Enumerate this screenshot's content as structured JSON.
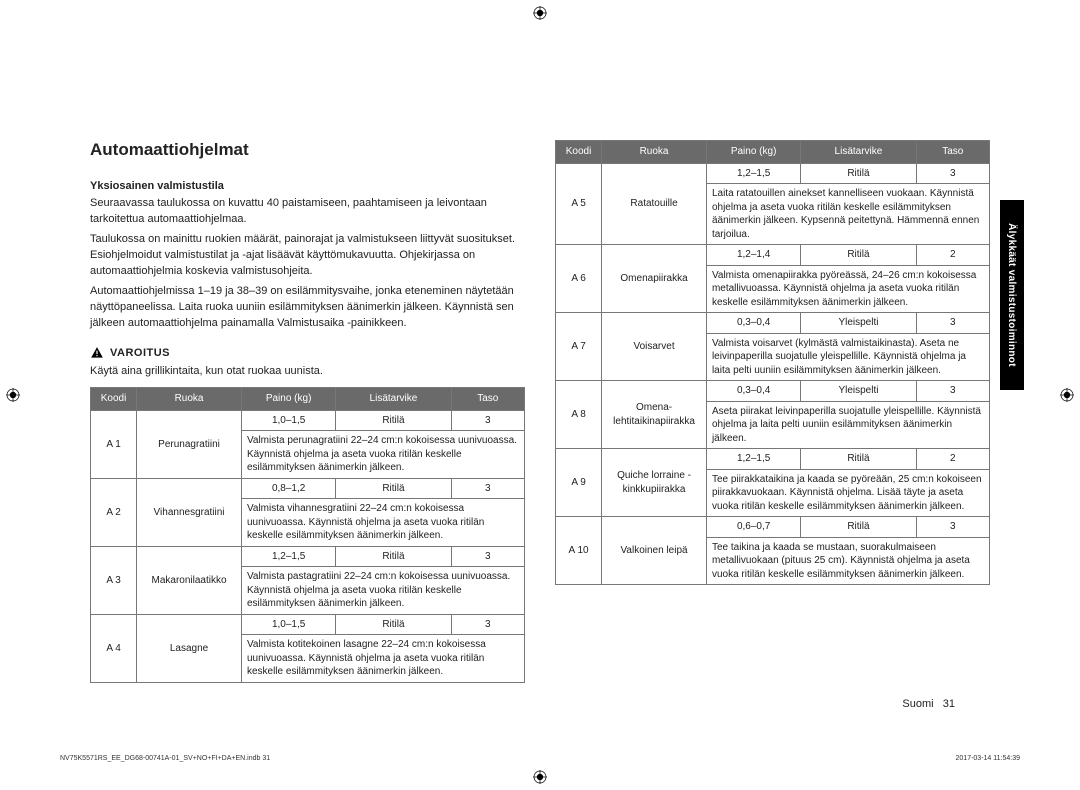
{
  "heading": "Automaattiohjelmat",
  "section_title": "Yksiosainen valmistustila",
  "intro_paragraphs": [
    "Seuraavassa taulukossa on kuvattu 40 paistamiseen, paahtamiseen ja leivontaan tarkoitettua automaattiohjelmaa.",
    "Taulukossa on mainittu ruokien määrät, painorajat ja valmistukseen liittyvät suositukset. Esiohjelmoidut valmistustilat ja -ajat lisäävät käyttömukavuutta. Ohjekirjassa on automaattiohjelmia koskevia valmistusohjeita.",
    "Automaattiohjelmissa 1–19 ja 38–39 on esilämmitysvaihe, jonka eteneminen näytetään näyttöpaneelissa. Laita ruoka uuniin esilämmityksen äänimerkin jälkeen. Käynnistä sen jälkeen automaattiohjelma painamalla Valmistusaika -painikkeen."
  ],
  "warning_label": "VAROITUS",
  "warning_text": "Käytä aina grillikintaita, kun otat ruokaa uunista.",
  "headers": {
    "code": "Koodi",
    "food": "Ruoka",
    "weight": "Paino (kg)",
    "accessory": "Lisätarvike",
    "level": "Taso"
  },
  "left_rows": [
    {
      "code": "A 1",
      "food": "Perunagratiini",
      "weight": "1,0–1,5",
      "acc": "Ritilä",
      "lvl": "3",
      "instr": "Valmista perunagratiini 22–24 cm:n kokoisessa uunivuoassa. Käynnistä ohjelma ja aseta vuoka ritilän keskelle esilämmityksen äänimerkin jälkeen."
    },
    {
      "code": "A 2",
      "food": "Vihannesgratiini",
      "weight": "0,8–1,2",
      "acc": "Ritilä",
      "lvl": "3",
      "instr": "Valmista vihannesgratiini 22–24 cm:n kokoisessa uunivuoassa. Käynnistä ohjelma ja aseta vuoka ritilän keskelle esilämmityksen äänimerkin jälkeen."
    },
    {
      "code": "A 3",
      "food": "Makaronilaatikko",
      "weight": "1,2–1,5",
      "acc": "Ritilä",
      "lvl": "3",
      "instr": "Valmista pastagratiini 22–24 cm:n kokoisessa uunivuoassa. Käynnistä ohjelma ja aseta vuoka ritilän keskelle esilämmityksen äänimerkin jälkeen."
    },
    {
      "code": "A 4",
      "food": "Lasagne",
      "weight": "1,0–1,5",
      "acc": "Ritilä",
      "lvl": "3",
      "instr": "Valmista kotitekoinen lasagne 22–24 cm:n kokoisessa uunivuoassa. Käynnistä ohjelma ja aseta vuoka ritilän keskelle esilämmityksen äänimerkin jälkeen."
    }
  ],
  "right_rows": [
    {
      "code": "A 5",
      "food": "Ratatouille",
      "weight": "1,2–1,5",
      "acc": "Ritilä",
      "lvl": "3",
      "instr": "Laita ratatouillen ainekset kannelliseen vuokaan. Käynnistä ohjelma ja aseta vuoka ritilän keskelle esilämmityksen äänimerkin jälkeen. Kypsennä peitettynä. Hämmennä ennen tarjoilua."
    },
    {
      "code": "A 6",
      "food": "Omenapiirakka",
      "weight": "1,2–1,4",
      "acc": "Ritilä",
      "lvl": "2",
      "instr": "Valmista omenapiirakka pyöreässä, 24–26 cm:n kokoisessa metallivuoassa. Käynnistä ohjelma ja aseta vuoka ritilän keskelle esilämmityksen äänimerkin jälkeen."
    },
    {
      "code": "A 7",
      "food": "Voisarvet",
      "weight": "0,3–0,4",
      "acc": "Yleispelti",
      "lvl": "3",
      "instr": "Valmista voisarvet (kylmästä valmistaikinasta). Aseta ne leivinpaperilla suojatulle yleispellille. Käynnistä ohjelma ja laita pelti uuniin esilämmityksen äänimerkin jälkeen."
    },
    {
      "code": "A 8",
      "food": "Omena-lehtitaikinapiirakka",
      "weight": "0,3–0,4",
      "acc": "Yleispelti",
      "lvl": "3",
      "instr": "Aseta piirakat leivinpaperilla suojatulle yleispellille. Käynnistä ohjelma ja laita pelti uuniin esilämmityksen äänimerkin jälkeen."
    },
    {
      "code": "A 9",
      "food": "Quiche lorraine -kinkkupiirakka",
      "weight": "1,2–1,5",
      "acc": "Ritilä",
      "lvl": "2",
      "instr": "Tee piirakkataikina ja kaada se pyöreään, 25 cm:n kokoiseen piirakkavuokaan. Käynnistä ohjelma. Lisää täyte ja aseta vuoka ritilän keskelle esilämmityksen äänimerkin jälkeen."
    },
    {
      "code": "A 10",
      "food": "Valkoinen leipä",
      "weight": "0,6–0,7",
      "acc": "Ritilä",
      "lvl": "3",
      "instr": "Tee taikina ja kaada se mustaan, suorakulmaiseen metallivuokaan (pituus 25 cm). Käynnistä ohjelma ja aseta vuoka ritilän keskelle esilämmityksen äänimerkin jälkeen."
    }
  ],
  "side_tab": "Älykkäät valmistustoiminnot",
  "page_lang": "Suomi",
  "page_num": "31",
  "footer_left": "NV75K5571RS_EE_DG68-00741A-01_SV+NO+FI+DA+EN.indb   31",
  "footer_right": "2017-03-14   11:54:39"
}
